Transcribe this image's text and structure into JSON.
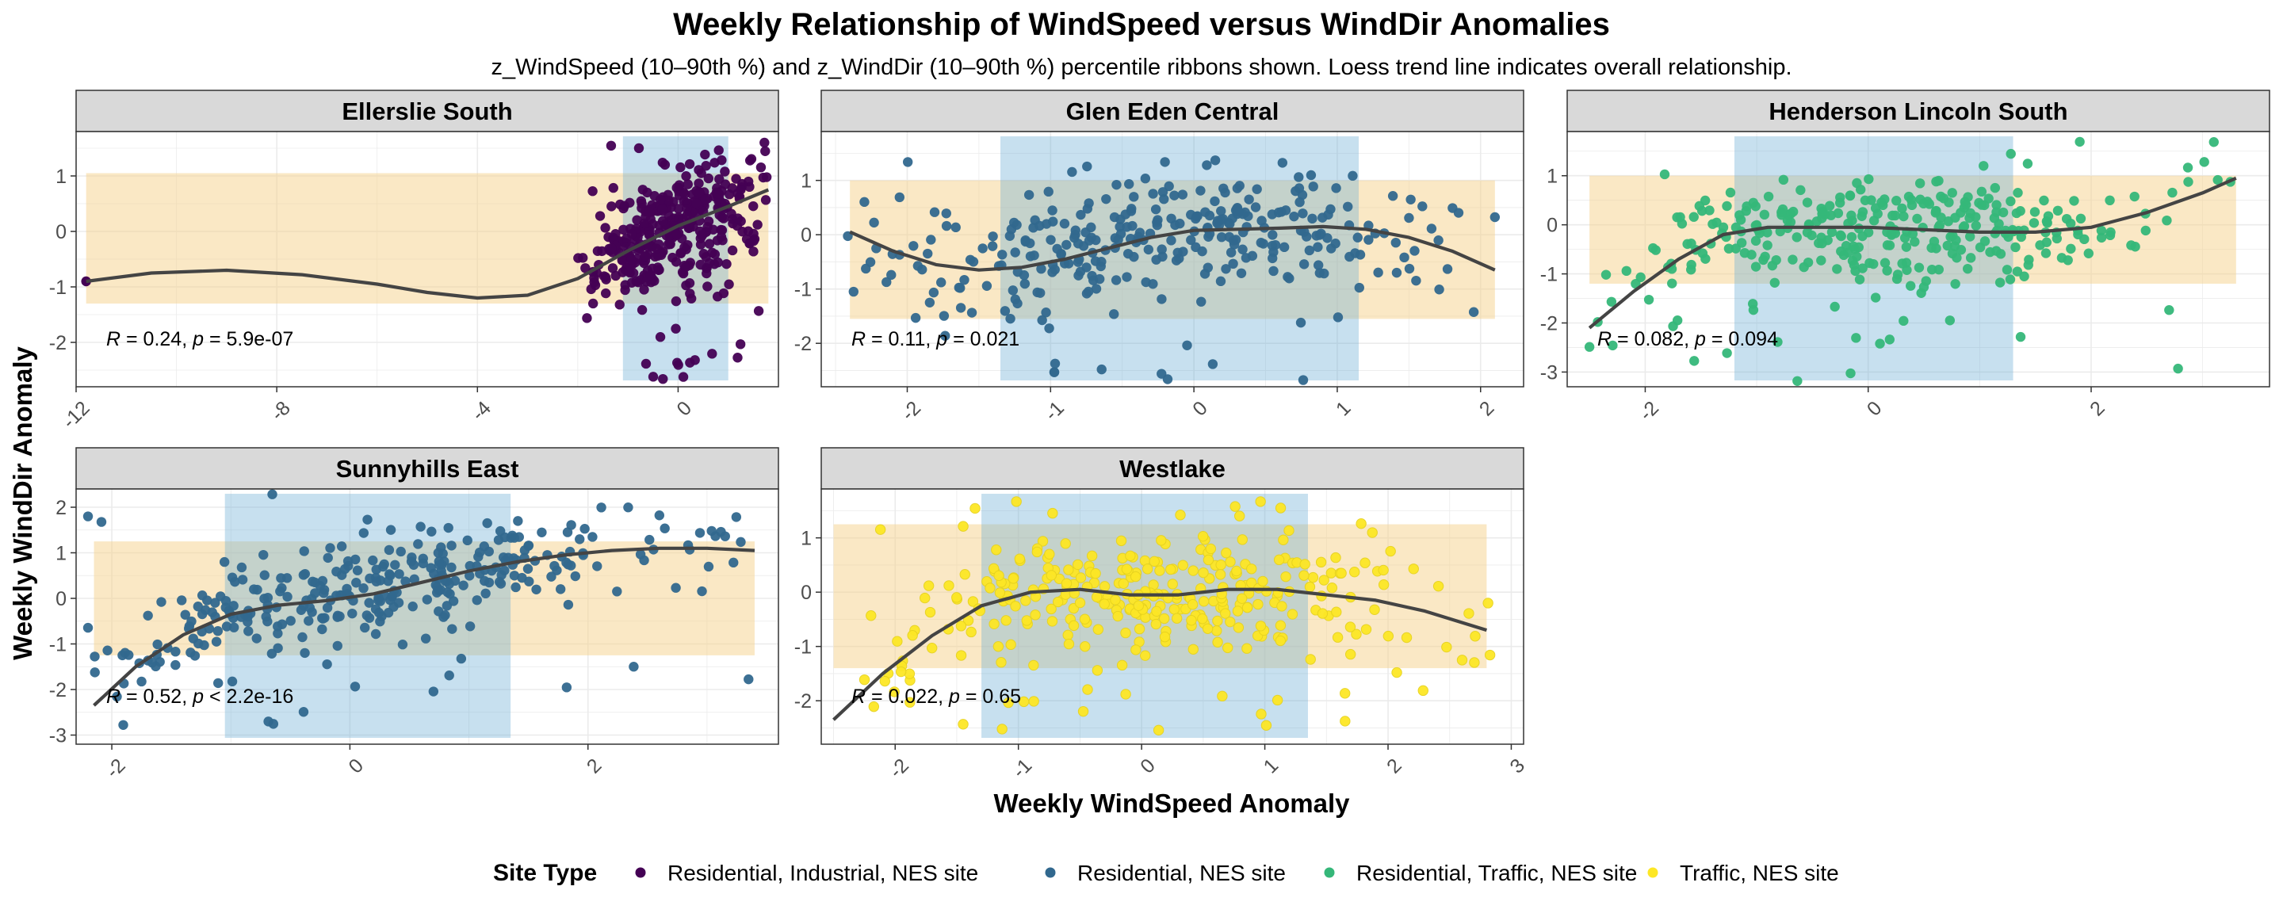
{
  "title": "Weekly Relationship of WindSpeed versus WindDir Anomalies",
  "subtitle": "z_WindSpeed (10–90th %) and z_WindDir (10–90th %) percentile ribbons shown. Loess trend line indicates overall relationship.",
  "xlabel": "Weekly WindSpeed Anomaly",
  "ylabel": "Weekly WindDir Anomaly",
  "legend": {
    "title": "Site Type",
    "position": "bottom",
    "items": [
      {
        "label": "Residential, Industrial, NES site",
        "color": "#440154"
      },
      {
        "label": "Residential, NES site",
        "color": "#31688e"
      },
      {
        "label": "Residential, Traffic, NES site",
        "color": "#35b779"
      },
      {
        "label": "Traffic, NES site",
        "color": "#fde725"
      }
    ]
  },
  "colors": {
    "panel_header_bg": "#d9d9d9",
    "x_ribbon": "#6baed6",
    "y_ribbon": "#f6d28c",
    "trend_line": "#444444",
    "grid": "#ebebeb"
  },
  "chart_data": [
    {
      "type": "scatter",
      "facet": "Ellerslie South",
      "site_type": "Residential, Industrial, NES site",
      "color": "#440154",
      "xlim": [
        -12,
        2
      ],
      "ylim": [
        -2.8,
        1.8
      ],
      "xticks": [
        -12,
        -8,
        -4,
        0
      ],
      "yticks": [
        -2,
        -1,
        0,
        1
      ],
      "x_ribbon": [
        -1.1,
        1.0
      ],
      "y_ribbon": [
        -1.3,
        1.05
      ],
      "annotation": {
        "r": "0.24",
        "p": "5.9e-07"
      },
      "cluster": {
        "x_range": [
          -2.0,
          1.8
        ],
        "y_range": [
          -2.7,
          1.6
        ],
        "count": 380
      },
      "extra_points": [
        [
          -11.8,
          -0.9
        ]
      ],
      "trend": [
        [
          -11.8,
          -0.9
        ],
        [
          -10.5,
          -0.75
        ],
        [
          -9,
          -0.7
        ],
        [
          -7.5,
          -0.78
        ],
        [
          -6,
          -0.95
        ],
        [
          -5,
          -1.1
        ],
        [
          -4,
          -1.2
        ],
        [
          -3,
          -1.15
        ],
        [
          -2,
          -0.85
        ],
        [
          -1,
          -0.35
        ],
        [
          0,
          0.1
        ],
        [
          1,
          0.45
        ],
        [
          1.8,
          0.75
        ]
      ]
    },
    {
      "type": "scatter",
      "facet": "Glen Eden Central",
      "site_type": "Residential, NES site",
      "color": "#31688e",
      "xlim": [
        -2.6,
        2.3
      ],
      "ylim": [
        -2.8,
        1.9
      ],
      "xticks": [
        -2,
        -1,
        0,
        1,
        2
      ],
      "yticks": [
        -2,
        -1,
        0,
        1
      ],
      "x_ribbon": [
        -1.35,
        1.15
      ],
      "y_ribbon": [
        -1.55,
        1.0
      ],
      "annotation": {
        "r": "0.11",
        "p": "0.021"
      },
      "cluster": {
        "x_range": [
          -2.5,
          2.1
        ],
        "y_range": [
          -2.7,
          1.7
        ],
        "count": 320
      },
      "extra_points": [],
      "trend": [
        [
          -2.4,
          0.05
        ],
        [
          -2.1,
          -0.3
        ],
        [
          -1.8,
          -0.55
        ],
        [
          -1.5,
          -0.65
        ],
        [
          -1.2,
          -0.6
        ],
        [
          -0.9,
          -0.45
        ],
        [
          -0.6,
          -0.25
        ],
        [
          -0.3,
          -0.05
        ],
        [
          0,
          0.08
        ],
        [
          0.3,
          0.1
        ],
        [
          0.6,
          0.12
        ],
        [
          0.9,
          0.15
        ],
        [
          1.2,
          0.1
        ],
        [
          1.5,
          -0.05
        ],
        [
          1.8,
          -0.3
        ],
        [
          2.1,
          -0.65
        ]
      ]
    },
    {
      "type": "scatter",
      "facet": "Henderson Lincoln South",
      "site_type": "Residential, Traffic, NES site",
      "color": "#35b779",
      "xlim": [
        -2.7,
        3.6
      ],
      "ylim": [
        -3.3,
        1.9
      ],
      "xticks": [
        -2,
        0,
        2
      ],
      "yticks": [
        -3,
        -2,
        -1,
        0,
        1
      ],
      "x_ribbon": [
        -1.2,
        1.3
      ],
      "y_ribbon": [
        -1.2,
        1.0
      ],
      "annotation": {
        "r": "0.082",
        "p": "0.094"
      },
      "cluster": {
        "x_range": [
          -2.5,
          3.3
        ],
        "y_range": [
          -3.2,
          1.7
        ],
        "count": 330
      },
      "extra_points": [],
      "trend": [
        [
          -2.5,
          -2.1
        ],
        [
          -2.1,
          -1.35
        ],
        [
          -1.7,
          -0.7
        ],
        [
          -1.3,
          -0.2
        ],
        [
          -0.9,
          -0.05
        ],
        [
          -0.5,
          -0.05
        ],
        [
          0,
          -0.05
        ],
        [
          0.5,
          -0.1
        ],
        [
          1,
          -0.15
        ],
        [
          1.5,
          -0.15
        ],
        [
          2,
          -0.05
        ],
        [
          2.5,
          0.25
        ],
        [
          3,
          0.65
        ],
        [
          3.3,
          0.95
        ]
      ]
    },
    {
      "type": "scatter",
      "facet": "Sunnyhills East",
      "site_type": "Residential, NES site",
      "color": "#31688e",
      "xlim": [
        -2.3,
        3.6
      ],
      "ylim": [
        -3.2,
        2.4
      ],
      "xticks": [
        -2,
        0,
        2
      ],
      "yticks": [
        -3,
        -2,
        -1,
        0,
        1,
        2
      ],
      "x_ribbon": [
        -1.05,
        1.35
      ],
      "y_ribbon": [
        -1.25,
        1.25
      ],
      "annotation": {
        "r": "0.52",
        "p": "< 2.2e-16"
      },
      "cluster": {
        "x_range": [
          -2.2,
          3.4
        ],
        "y_range": [
          -3.0,
          2.3
        ],
        "count": 330
      },
      "extra_points": [],
      "trend": [
        [
          -2.15,
          -2.35
        ],
        [
          -1.8,
          -1.5
        ],
        [
          -1.4,
          -0.8
        ],
        [
          -1,
          -0.35
        ],
        [
          -0.6,
          -0.15
        ],
        [
          -0.2,
          -0.05
        ],
        [
          0.2,
          0.1
        ],
        [
          0.6,
          0.35
        ],
        [
          1,
          0.6
        ],
        [
          1.4,
          0.8
        ],
        [
          1.8,
          0.95
        ],
        [
          2.2,
          1.05
        ],
        [
          2.6,
          1.1
        ],
        [
          3.0,
          1.1
        ],
        [
          3.4,
          1.05
        ]
      ]
    },
    {
      "type": "scatter",
      "facet": "Westlake",
      "site_type": "Traffic, NES site",
      "color": "#fde725",
      "xlim": [
        -2.6,
        3.1
      ],
      "ylim": [
        -2.8,
        1.9
      ],
      "xticks": [
        -2,
        -1,
        0,
        1,
        2,
        3
      ],
      "yticks": [
        -2,
        -1,
        0,
        1
      ],
      "x_ribbon": [
        -1.3,
        1.35
      ],
      "y_ribbon": [
        -1.4,
        1.25
      ],
      "annotation": {
        "r": "0.022",
        "p": "0.65"
      },
      "cluster": {
        "x_range": [
          -2.5,
          2.9
        ],
        "y_range": [
          -2.7,
          1.7
        ],
        "count": 330
      },
      "extra_points": [],
      "trend": [
        [
          -2.5,
          -2.35
        ],
        [
          -2.1,
          -1.5
        ],
        [
          -1.7,
          -0.8
        ],
        [
          -1.3,
          -0.25
        ],
        [
          -0.9,
          0.0
        ],
        [
          -0.5,
          0.05
        ],
        [
          -0.1,
          -0.05
        ],
        [
          0.3,
          -0.05
        ],
        [
          0.7,
          0.05
        ],
        [
          1.1,
          0.05
        ],
        [
          1.5,
          -0.05
        ],
        [
          1.9,
          -0.15
        ],
        [
          2.3,
          -0.35
        ],
        [
          2.8,
          -0.7
        ]
      ]
    }
  ]
}
